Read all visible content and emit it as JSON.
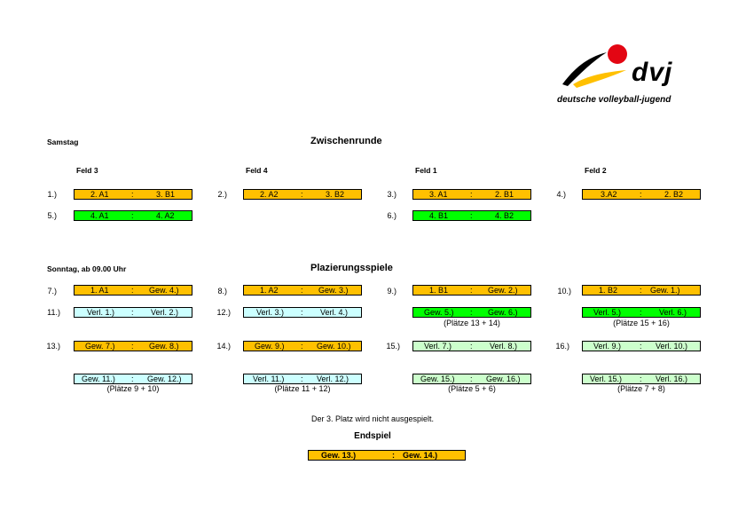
{
  "logo": {
    "name": "dvj",
    "tagline": "deutsche volleyball-jugend"
  },
  "saturday": {
    "day": "Samstag",
    "title": "Zwischenrunde",
    "fields": [
      "Feld 3",
      "Feld 4",
      "Feld 1",
      "Feld 2"
    ],
    "matches": [
      {
        "num": "1.)",
        "a": "2. A1",
        "b": "3. B1"
      },
      {
        "num": "2.)",
        "a": "2. A2",
        "b": "3. B2"
      },
      {
        "num": "3.)",
        "a": "3. A1",
        "b": "2. B1"
      },
      {
        "num": "4.)",
        "a": "3.A2",
        "b": "2. B2"
      },
      {
        "num": "5.)",
        "a": "4. A1",
        "b": "4. A2"
      },
      {
        "num": "6.)",
        "a": "4. B1",
        "b": "4. B2"
      }
    ]
  },
  "sunday": {
    "day": "Sonntag, ab 09.00 Uhr",
    "title": "Plazierungsspiele",
    "matches": [
      {
        "num": "7.)",
        "a": "1. A1",
        "b": "Gew. 4.)"
      },
      {
        "num": "8.)",
        "a": "1. A2",
        "b": "Gew. 3.)"
      },
      {
        "num": "9.)",
        "a": "1. B1",
        "b": "Gew. 2.)"
      },
      {
        "num": "10.)",
        "a": "1. B2",
        "b": "Gew. 1.)"
      },
      {
        "num": "11.)",
        "a": "Verl. 1.)",
        "b": "Verl. 2.)"
      },
      {
        "num": "12.)",
        "a": "Verl. 3.)",
        "b": "Verl. 4.)"
      },
      {
        "num": "",
        "a": "Gew. 5.)",
        "b": "Gew. 6.)"
      },
      {
        "num": "",
        "a": "Verl. 5.)",
        "b": "Verl. 6.)"
      },
      {
        "num": "13.)",
        "a": "Gew. 7.)",
        "b": "Gew. 8.)"
      },
      {
        "num": "14.)",
        "a": "Gew. 9.)",
        "b": "Gew. 10.)"
      },
      {
        "num": "15.)",
        "a": "Verl. 7.)",
        "b": "Verl. 8.)"
      },
      {
        "num": "16.)",
        "a": "Verl. 9.)",
        "b": "Verl. 10.)"
      },
      {
        "num": "",
        "a": "Gew. 11.)",
        "b": "Gew. 12.)"
      },
      {
        "num": "",
        "a": "Verl. 11.)",
        "b": "Verl. 12.)"
      },
      {
        "num": "",
        "a": "Gew. 15.)",
        "b": "Gew. 16.)"
      },
      {
        "num": "",
        "a": "Verl. 15.)",
        "b": "Verl. 16.)"
      }
    ],
    "placements": [
      "(Plätze 13 + 14)",
      "(Plätze 15 + 16)",
      "(Plätze 9 + 10)",
      "(Plätze 11 + 12)",
      "(Plätze 5 + 6)",
      "(Plätze 7 + 8)"
    ]
  },
  "note": "Der 3. Platz wird nicht ausgespielt.",
  "final": {
    "title": "Endspiel",
    "a": "Gew. 13.)",
    "b": "Gew. 14.)"
  },
  "separator": ":",
  "colors": {
    "orange": "#ffc000",
    "green": "#00ff00",
    "cyan": "#ccffff",
    "lightgreen": "#ccffcc",
    "red": "#e30613"
  }
}
